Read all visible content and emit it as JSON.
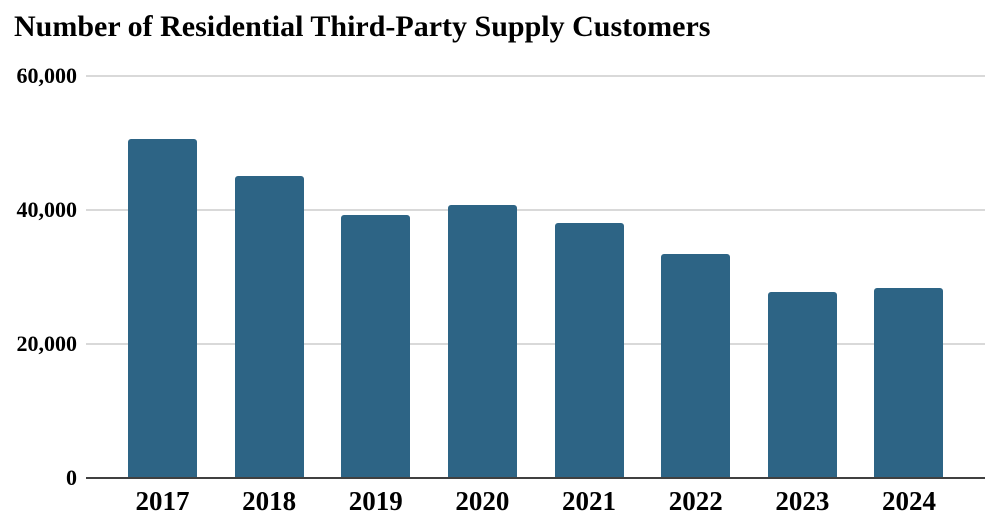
{
  "title": "Number of Residential Third-Party Supply Customers",
  "chart_data": {
    "type": "bar",
    "title": "Number of Residential Third-Party Supply Customers",
    "categories": [
      "2017",
      "2018",
      "2019",
      "2020",
      "2021",
      "2022",
      "2023",
      "2024"
    ],
    "values": [
      50600,
      45100,
      39300,
      40800,
      38000,
      33500,
      27700,
      28400
    ],
    "xlabel": "",
    "ylabel": "",
    "ylim": [
      0,
      60000
    ],
    "yticks": [
      {
        "value": 60000,
        "label": "60,000"
      },
      {
        "value": 40000,
        "label": "40,000"
      },
      {
        "value": 20000,
        "label": "20,000"
      },
      {
        "value": 0,
        "label": "0"
      }
    ],
    "grid": true,
    "legend": false,
    "colors": {
      "bar": "#2d6485",
      "gridline": "#d9d9d9",
      "axis_line": "#404040",
      "text": "#000000",
      "background": "#ffffff"
    }
  }
}
